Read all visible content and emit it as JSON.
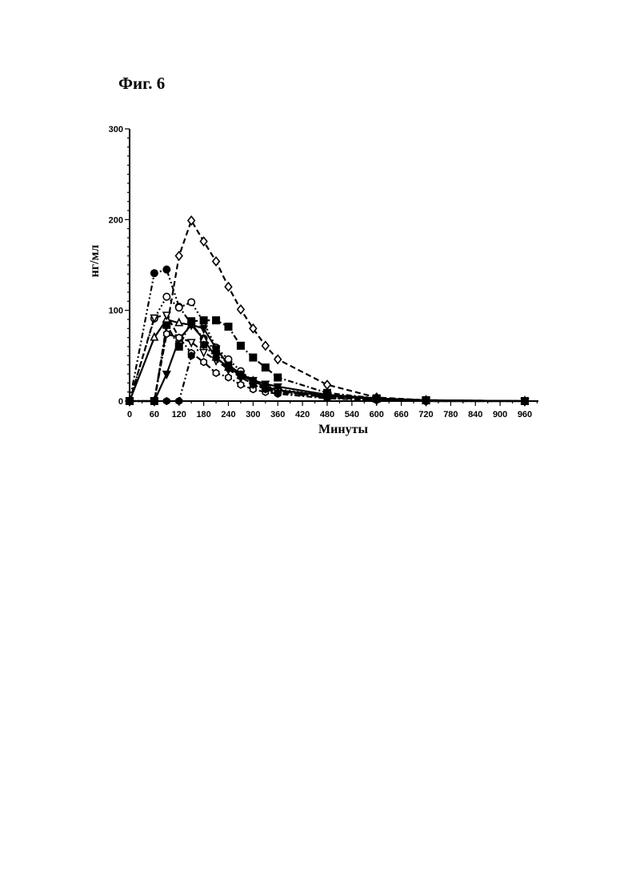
{
  "figure": {
    "title": "Фиг. 6"
  },
  "chart_data": {
    "type": "line",
    "title": "",
    "xlabel": "Минуты",
    "ylabel": "нг/мл",
    "xlim": [
      0,
      990
    ],
    "ylim": [
      0,
      300
    ],
    "xticks": [
      0,
      60,
      120,
      180,
      240,
      300,
      360,
      420,
      480,
      540,
      600,
      660,
      720,
      780,
      840,
      900,
      960
    ],
    "yticks": [
      0,
      100,
      200,
      300
    ],
    "grid": false,
    "legend": "none",
    "series": [
      {
        "style": "dash",
        "marker": "diamond-open",
        "x": [
          0,
          60,
          120,
          150,
          180,
          210,
          240,
          270,
          300,
          330,
          360,
          480,
          600,
          720,
          960
        ],
        "y": [
          0,
          0,
          160,
          199,
          176,
          154,
          126,
          101,
          80,
          61,
          46,
          18,
          4,
          1,
          0
        ]
      },
      {
        "style": "dashdotdot",
        "marker": "circle-filled",
        "x": [
          0,
          60,
          90,
          120,
          150,
          180,
          210,
          240,
          270,
          300,
          330,
          360,
          480,
          600,
          720,
          960
        ],
        "y": [
          0,
          141,
          145,
          104,
          85,
          69,
          55,
          40,
          29,
          22,
          15,
          11,
          5,
          2,
          0,
          0
        ]
      },
      {
        "style": "dot",
        "marker": "circle-open",
        "x": [
          0,
          60,
          90,
          120,
          150,
          180,
          210,
          240,
          270,
          300,
          330,
          360,
          480,
          600,
          720,
          960
        ],
        "y": [
          0,
          91,
          115,
          103,
          109,
          87,
          59,
          46,
          33,
          22,
          17,
          13,
          6,
          2,
          0,
          0
        ]
      },
      {
        "style": "dashdot",
        "marker": "square-filled",
        "x": [
          0,
          60,
          90,
          120,
          150,
          180,
          210,
          240,
          270,
          300,
          330,
          360,
          480,
          600,
          720,
          960
        ],
        "y": [
          0,
          0,
          84,
          60,
          88,
          89,
          89,
          82,
          61,
          48,
          37,
          26,
          9,
          3,
          1,
          0
        ]
      },
      {
        "style": "solid",
        "marker": "triangle-up-open",
        "x": [
          0,
          60,
          90,
          120,
          150,
          180,
          210,
          240,
          270,
          300,
          330,
          360,
          480,
          600,
          720,
          960
        ],
        "y": [
          0,
          70,
          90,
          86,
          84,
          68,
          48,
          37,
          28,
          22,
          16,
          12,
          6,
          2,
          0,
          0
        ]
      },
      {
        "style": "dash",
        "marker": "triangle-down-open",
        "x": [
          0,
          60,
          90,
          120,
          150,
          180,
          210,
          240,
          270,
          300,
          330,
          360,
          480,
          600,
          720,
          960
        ],
        "y": [
          0,
          92,
          95,
          70,
          65,
          54,
          45,
          35,
          26,
          19,
          14,
          11,
          4,
          1,
          0,
          0
        ]
      },
      {
        "style": "solid",
        "marker": "triangle-down-filled",
        "x": [
          0,
          60,
          90,
          120,
          150,
          180,
          210,
          240,
          270,
          300,
          330,
          360,
          480,
          600,
          720,
          960
        ],
        "y": [
          0,
          0,
          30,
          68,
          84,
          80,
          58,
          40,
          30,
          23,
          19,
          16,
          7,
          3,
          1,
          0
        ]
      },
      {
        "style": "dashdot",
        "marker": "hexagon-open",
        "x": [
          0,
          60,
          90,
          120,
          150,
          180,
          210,
          240,
          270,
          300,
          330,
          360,
          480,
          600,
          720,
          960
        ],
        "y": [
          0,
          0,
          74,
          70,
          53,
          43,
          31,
          26,
          18,
          13,
          10,
          8,
          3,
          1,
          0,
          0
        ]
      },
      {
        "style": "dashdotdot",
        "marker": "hexagon-filled",
        "x": [
          0,
          60,
          90,
          120,
          150,
          180,
          210,
          240,
          270,
          300,
          330,
          360,
          480,
          600,
          720,
          960
        ],
        "y": [
          0,
          0,
          0,
          0,
          50,
          62,
          48,
          36,
          27,
          18,
          13,
          9,
          4,
          2,
          1,
          0
        ]
      }
    ]
  }
}
